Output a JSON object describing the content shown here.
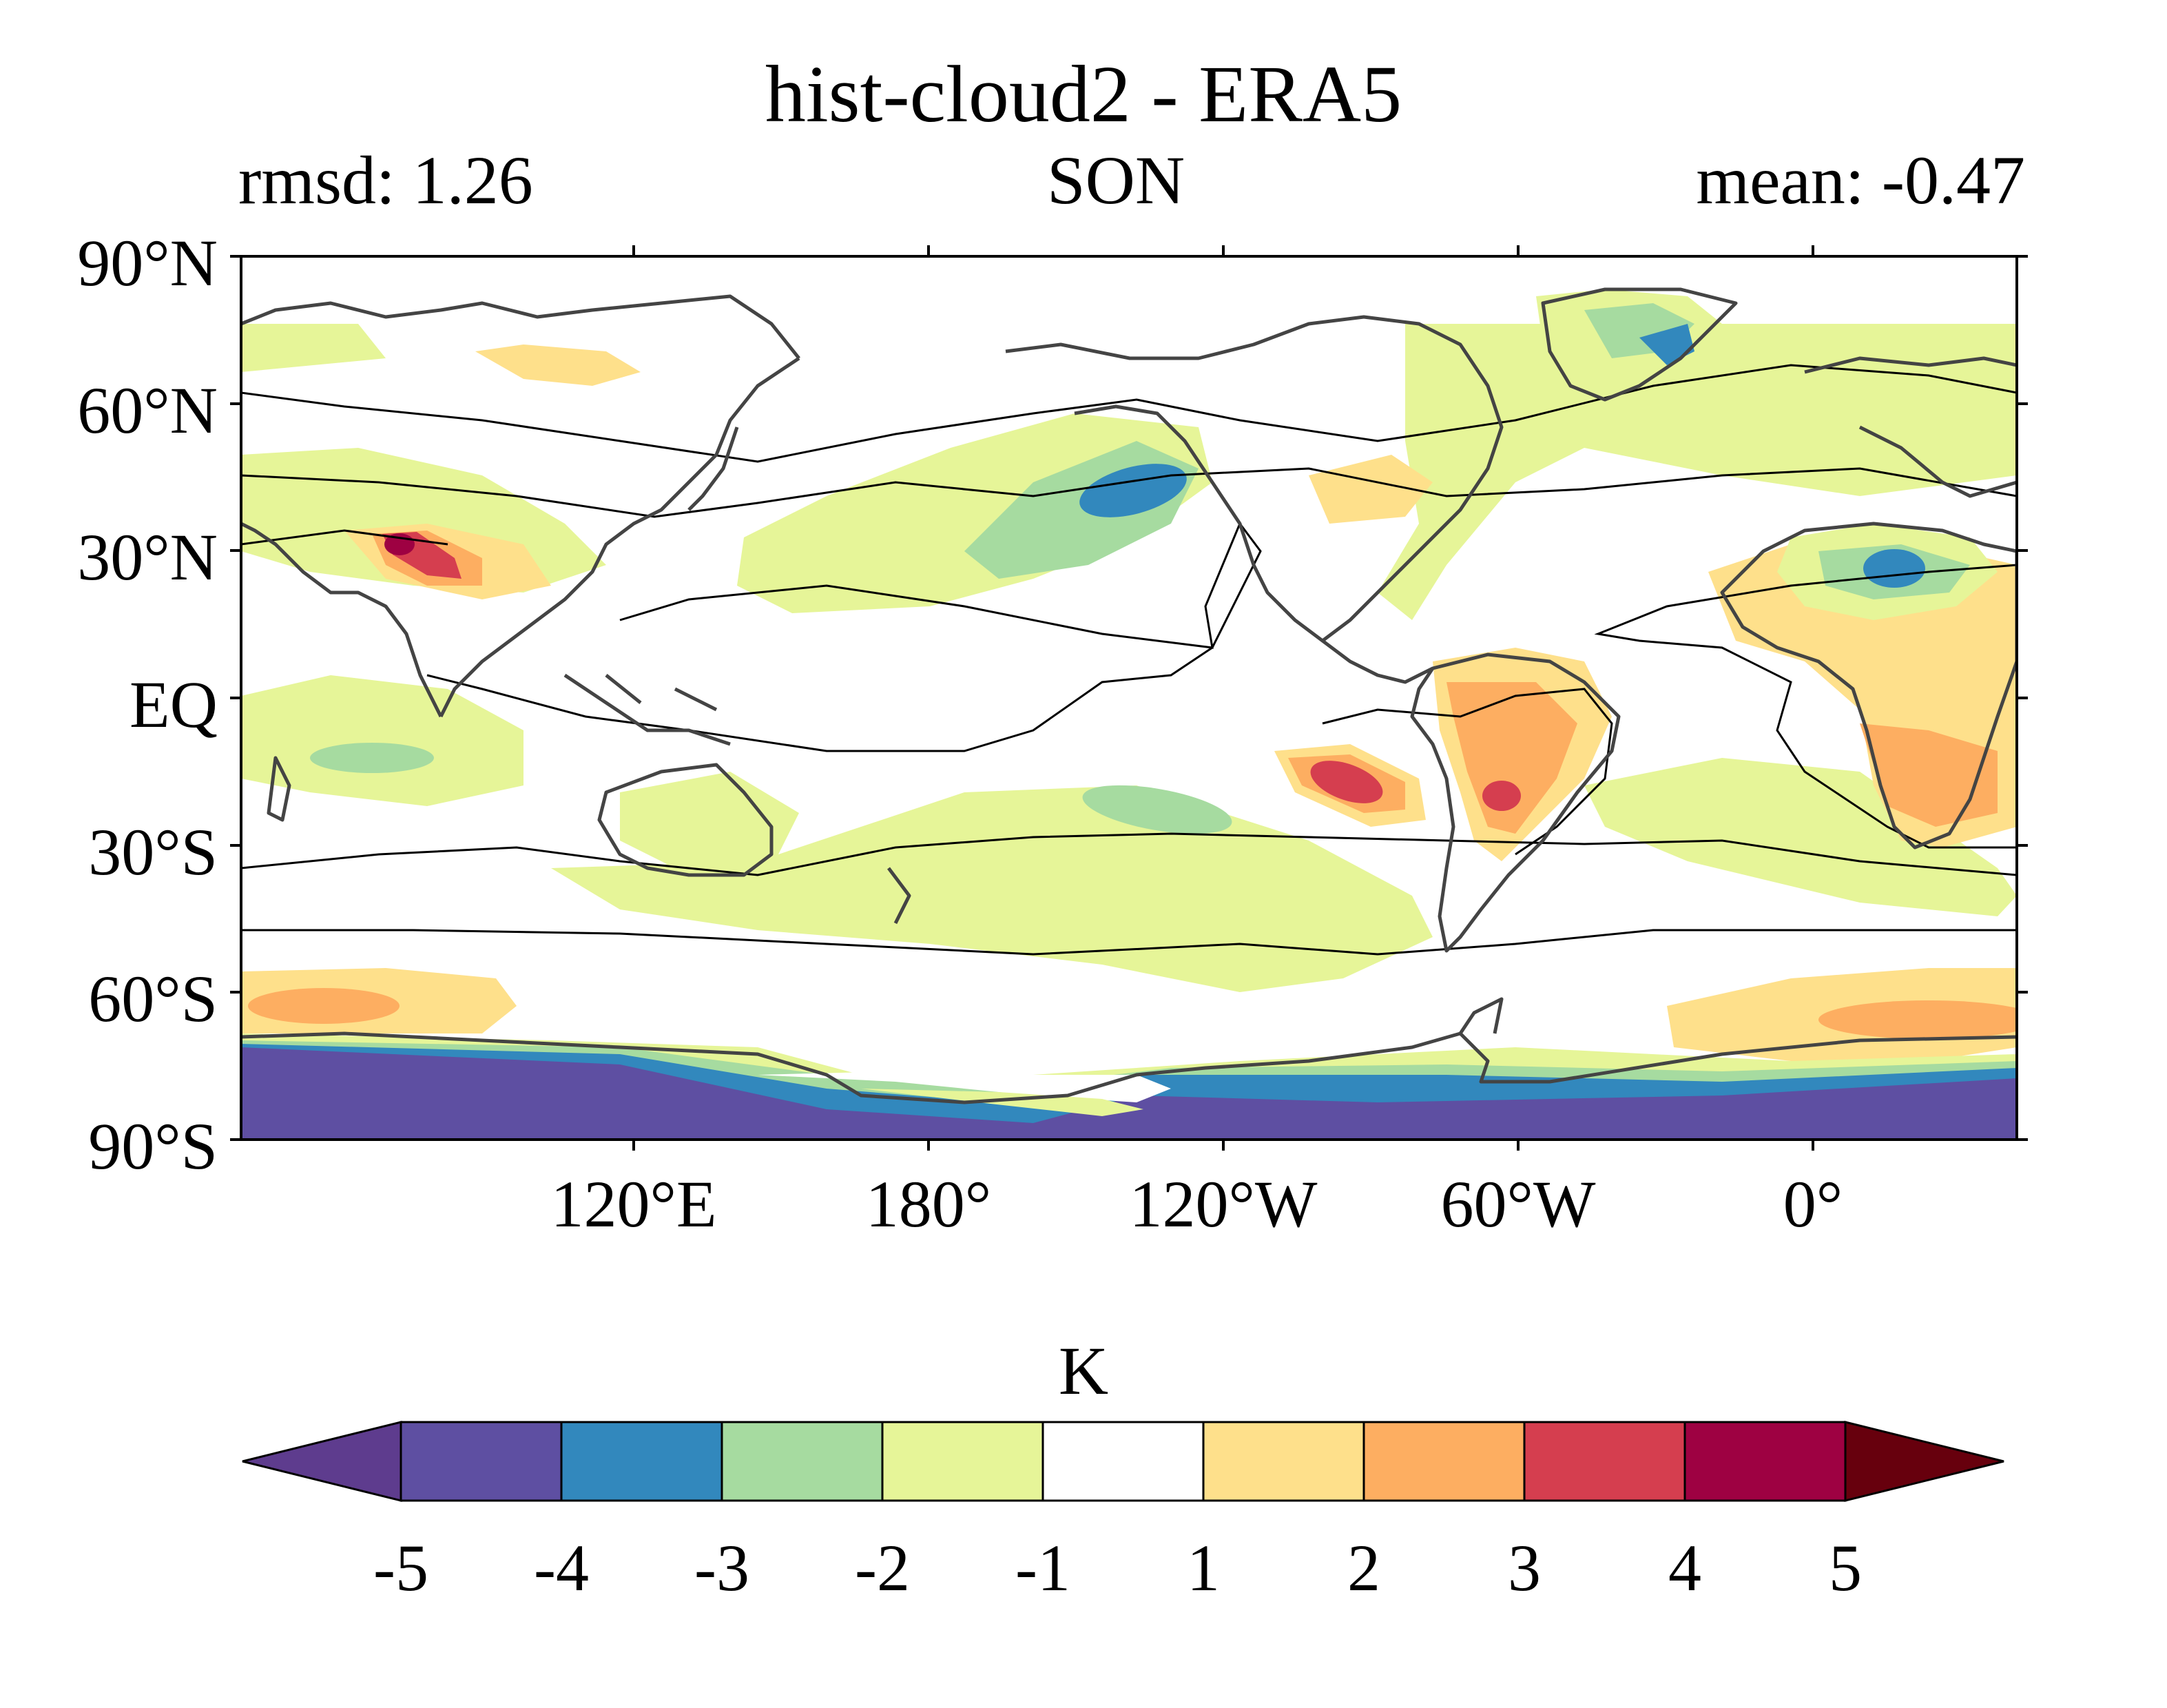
{
  "header": {
    "title": "hist-cloud2 - ERA5",
    "stat_left": "rmsd: 1.26",
    "stat_center": "SON",
    "stat_right": "mean: -0.47"
  },
  "map": {
    "lat_labels": [
      "90°N",
      "60°N",
      "30°N",
      "EQ",
      "30°S",
      "60°S",
      "90°S"
    ],
    "lon_labels": [
      "120°E",
      "180°",
      "120°W",
      "60°W",
      "0°"
    ],
    "anomaly_regions": [
      {
        "region": "Greenland",
        "value": -3.5
      },
      {
        "region": "Northeast Pacific",
        "value": -3.5
      },
      {
        "region": "North Africa",
        "value": -3.5
      },
      {
        "region": "Tibetan Plateau",
        "value": 3.5
      },
      {
        "region": "Southeast Pacific off Chile",
        "value": 3.5
      },
      {
        "region": "South America",
        "value": 2.5
      },
      {
        "region": "Southern Africa",
        "value": 2.5
      },
      {
        "region": "Antarctica",
        "value": -4.5
      }
    ]
  },
  "colorbar": {
    "unit": "K",
    "ticks": [
      "-5",
      "-4",
      "-3",
      "-2",
      "-1",
      "1",
      "2",
      "3",
      "4",
      "5"
    ],
    "colors": {
      "below_min": "#5e3c8e",
      "-5_-4": "#5e4fa2",
      "-4_-3": "#3288bd",
      "-3_-2": "#a6dba0",
      "-2_-1": "#e6f598",
      "-1_1": "#ffffff",
      "1_2": "#fee08b",
      "2_3": "#fdae61",
      "3_4": "#d53e4f",
      "4_5": "#9e0142",
      "above_max": "#67000d"
    },
    "extend": "both"
  }
}
